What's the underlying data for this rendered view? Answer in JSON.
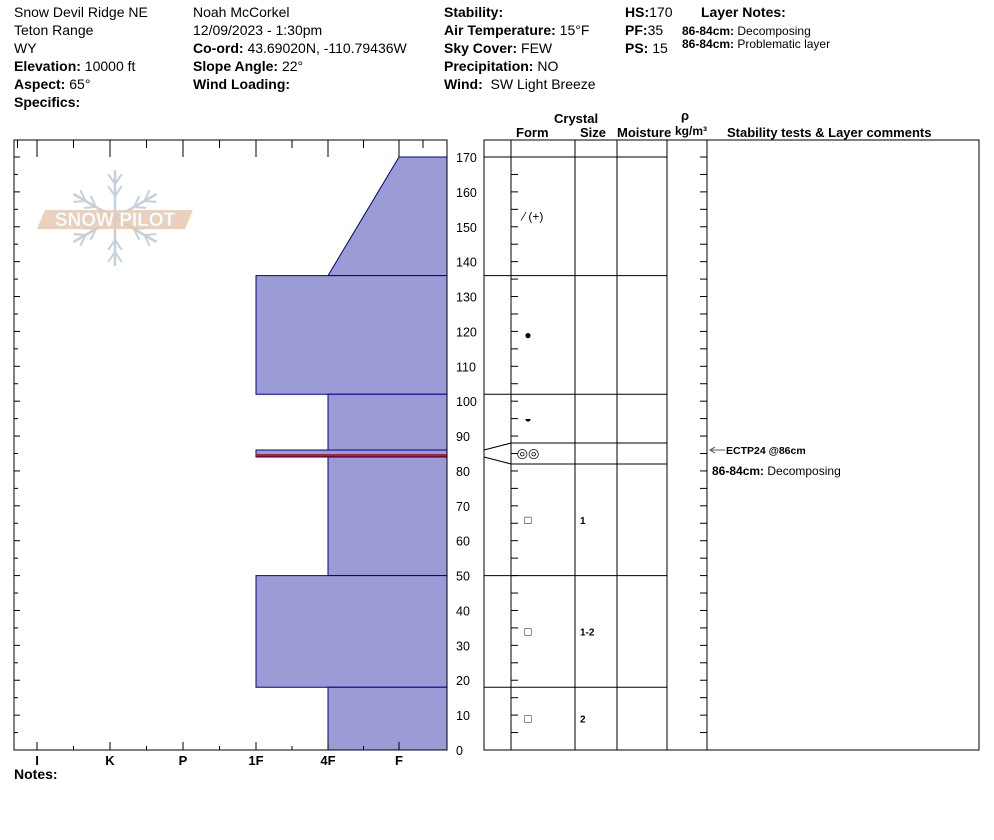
{
  "header": {
    "location": "Snow Devil Ridge NE",
    "range": "Teton Range",
    "state": "WY",
    "elevation_label": "Elevation:",
    "elevation": "10000 ft",
    "aspect_label": "Aspect:",
    "aspect": "65°",
    "specifics_label": "Specifics:",
    "observer": "Noah McCorkel",
    "datetime": "12/09/2023 - 1:30pm",
    "coord_label": "Co-ord:",
    "coord": "43.69020N, -110.79436W",
    "slope_label": "Slope Angle:",
    "slope": "22°",
    "wind_loading_label": "Wind Loading:",
    "stability_label": "Stability:",
    "air_temp_label": "Air Temperature:",
    "air_temp": "15°F",
    "sky_label": "Sky Cover:",
    "sky": "FEW",
    "precip_label": "Precipitation:",
    "precip": "NO",
    "wind_label": "Wind:",
    "wind": "SW Light Breeze",
    "hs_label": "HS:",
    "hs": "170",
    "pf_label": "PF:",
    "pf": "35",
    "ps_label": "PS:",
    "ps": "15",
    "layer_notes_label": "Layer Notes:",
    "layer_notes": [
      {
        "range": "86-84cm:",
        "text": "Decomposing"
      },
      {
        "range": "86-84cm:",
        "text": "Problematic layer"
      }
    ]
  },
  "columns": {
    "crystal": "Crystal",
    "form": "Form",
    "size": "Size",
    "moisture": "Moisture",
    "rho": "ρ",
    "density_unit": "kg/m³",
    "comments": "Stability tests & Layer comments"
  },
  "logo": {
    "text": "SNOW PILOT",
    "color": "#e8c9b0"
  },
  "notes_label": "Notes:",
  "chart_data": {
    "type": "snow-profile",
    "hardness_labels": [
      "I",
      "K",
      "P",
      "1F",
      "4F",
      "F"
    ],
    "depth_ticks": [
      0,
      10,
      20,
      30,
      40,
      50,
      60,
      70,
      80,
      90,
      100,
      110,
      120,
      130,
      140,
      150,
      160,
      170
    ],
    "ylim": [
      0,
      170
    ],
    "fill_color": "#9b9bd5",
    "edge_color": "#00008b",
    "weak_layer_color": "#b22222",
    "layers": [
      {
        "top": 170,
        "bottom": 136,
        "hardness_top": "F",
        "hardness_bottom": "4F",
        "form": "⁄ (+)",
        "size": ""
      },
      {
        "top": 136,
        "bottom": 102,
        "hardness": "1F",
        "form": "●",
        "size": ""
      },
      {
        "top": 102,
        "bottom": 86,
        "hardness": "4F",
        "form": "◒",
        "size": ""
      },
      {
        "top": 86,
        "bottom": 84,
        "hardness": "1F",
        "form": "◎◎",
        "size": ""
      },
      {
        "top": 84,
        "bottom": 50,
        "hardness": "4F",
        "form": "□",
        "size": "1"
      },
      {
        "top": 50,
        "bottom": 18,
        "hardness": "1F",
        "form": "□",
        "size": "1-2"
      },
      {
        "top": 18,
        "bottom": 0,
        "hardness": "4F",
        "form": "□",
        "size": "2"
      }
    ],
    "weak_layer_depth": 84.5,
    "stability_test": {
      "label": "ECTP24 @86cm",
      "depth": 86
    },
    "layer_comment": {
      "range": "86-84cm:",
      "text": "Decomposing"
    }
  }
}
